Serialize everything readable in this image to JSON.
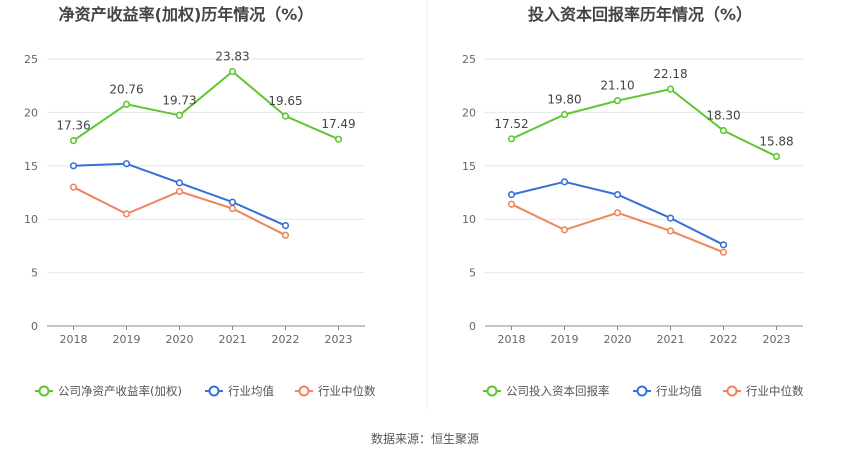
{
  "source": "数据来源：恒生聚源",
  "charts": [
    {
      "title": "净资产收益率(加权)历年情况（%）",
      "legend": [
        "公司净资产收益率(加权)",
        "行业均值",
        "行业中位数"
      ]
    },
    {
      "title": "投入资本回报率历年情况（%）",
      "legend": [
        "公司投入资本回报率",
        "行业均值",
        "行业中位数"
      ]
    }
  ],
  "colors": {
    "company": "#5cc72e",
    "mean": "#3670d8",
    "median": "#f0845a",
    "grid": "#e6e6ee",
    "axis": "#888888",
    "text": "#666666",
    "title": "#444444"
  },
  "chart_data": [
    {
      "type": "line",
      "title": "净资产收益率(加权)历年情况（%）",
      "categories": [
        "2018",
        "2019",
        "2020",
        "2021",
        "2022",
        "2023"
      ],
      "ylim": [
        0,
        25
      ],
      "yticks": [
        0,
        5,
        10,
        15,
        20,
        25
      ],
      "grid": true,
      "legend_position": "bottom",
      "series": [
        {
          "name": "公司净资产收益率(加权)",
          "values": [
            17.36,
            20.76,
            19.73,
            23.83,
            19.65,
            17.49
          ],
          "labeled": true
        },
        {
          "name": "行业均值",
          "values": [
            15.0,
            15.2,
            13.4,
            11.6,
            9.4,
            null
          ],
          "labeled": false
        },
        {
          "name": "行业中位数",
          "values": [
            13.0,
            10.5,
            12.6,
            11.0,
            8.5,
            null
          ],
          "labeled": false
        }
      ]
    },
    {
      "type": "line",
      "title": "投入资本回报率历年情况（%）",
      "categories": [
        "2018",
        "2019",
        "2020",
        "2021",
        "2022",
        "2023"
      ],
      "ylim": [
        0,
        25
      ],
      "yticks": [
        0,
        5,
        10,
        15,
        20,
        25
      ],
      "grid": true,
      "legend_position": "bottom",
      "series": [
        {
          "name": "公司投入资本回报率",
          "values": [
            17.52,
            19.8,
            21.1,
            22.18,
            18.3,
            15.88
          ],
          "labeled": true
        },
        {
          "name": "行业均值",
          "values": [
            12.3,
            13.5,
            12.3,
            10.1,
            7.6,
            null
          ],
          "labeled": false
        },
        {
          "name": "行业中位数",
          "values": [
            11.4,
            9.0,
            10.6,
            8.9,
            6.9,
            null
          ],
          "labeled": false
        }
      ]
    }
  ]
}
